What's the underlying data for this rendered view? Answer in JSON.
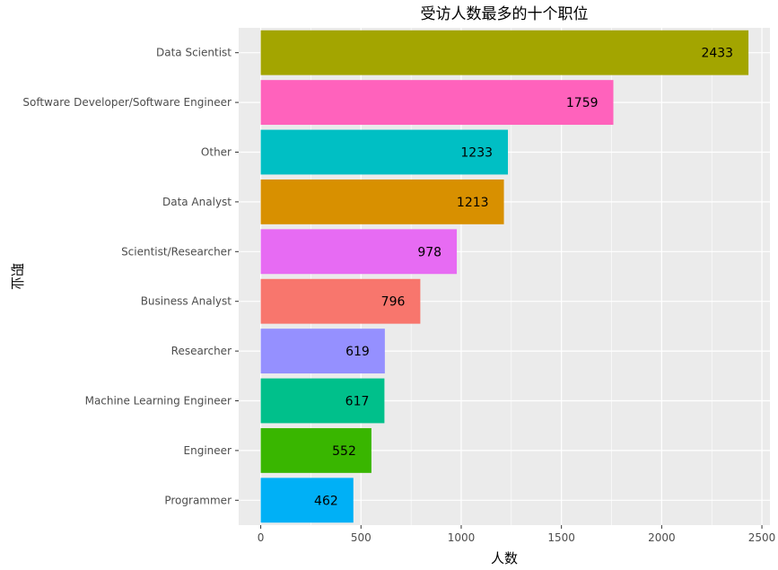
{
  "chart_data": {
    "type": "bar",
    "orientation": "horizontal",
    "title": "受访人数最多的十个职位",
    "xlabel": "人数",
    "ylabel": "职业",
    "categories": [
      "Data Scientist",
      "Software Developer/Software Engineer",
      "Other",
      "Data Analyst",
      "Scientist/Researcher",
      "Business Analyst",
      "Researcher",
      "Machine Learning Engineer",
      "Engineer",
      "Programmer"
    ],
    "values": [
      2433,
      1759,
      1233,
      1213,
      978,
      796,
      619,
      617,
      552,
      462
    ],
    "data_labels": [
      "2433",
      "1759",
      "1233",
      "1213",
      "978",
      "796",
      "619",
      "617",
      "552",
      "462"
    ],
    "colors": [
      "#A3A500",
      "#FF62BC",
      "#00BFC4",
      "#D89000",
      "#E76BF3",
      "#F8766D",
      "#9590FF",
      "#00C08B",
      "#39B600",
      "#00B0F6"
    ],
    "xlim": [
      -110,
      2540
    ],
    "x_ticks": [
      0,
      500,
      1000,
      1500,
      2000,
      2500
    ],
    "x_tick_labels": [
      "0",
      "500",
      "1000",
      "1500",
      "2000",
      "2500"
    ],
    "grid": true,
    "legend": "none",
    "panel_background": "#EBEBEB",
    "grid_color": "#FFFFFF"
  }
}
